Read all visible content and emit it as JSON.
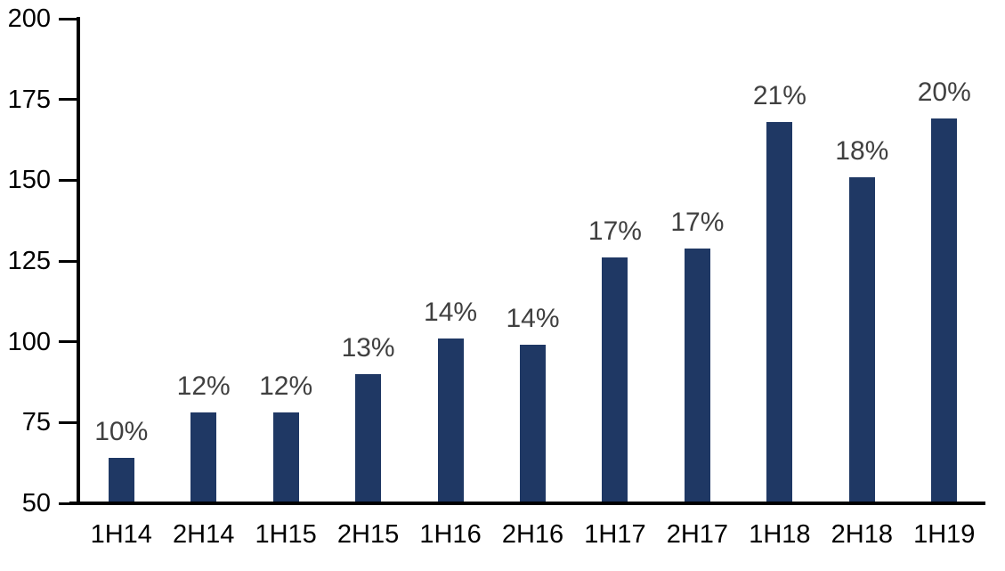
{
  "chart_data": {
    "type": "bar",
    "title": "",
    "xlabel": "",
    "ylabel": "",
    "categories": [
      "1H14",
      "2H14",
      "1H15",
      "2H15",
      "1H16",
      "2H16",
      "1H17",
      "2H17",
      "1H18",
      "2H18",
      "1H19"
    ],
    "values": [
      64,
      78,
      78,
      90,
      101,
      99,
      126,
      129,
      168,
      151,
      169
    ],
    "bar_labels": [
      "10%",
      "12%",
      "12%",
      "13%",
      "14%",
      "14%",
      "17%",
      "17%",
      "21%",
      "18%",
      "20%"
    ],
    "ylim": [
      50,
      200
    ],
    "yticks": [
      200,
      175,
      150,
      125,
      100,
      75,
      50
    ],
    "grid": false,
    "legend": false,
    "colors": {
      "bar": "#1f3864",
      "bar_label": "#404040",
      "axis": "#000000",
      "background": "#ffffff"
    }
  }
}
